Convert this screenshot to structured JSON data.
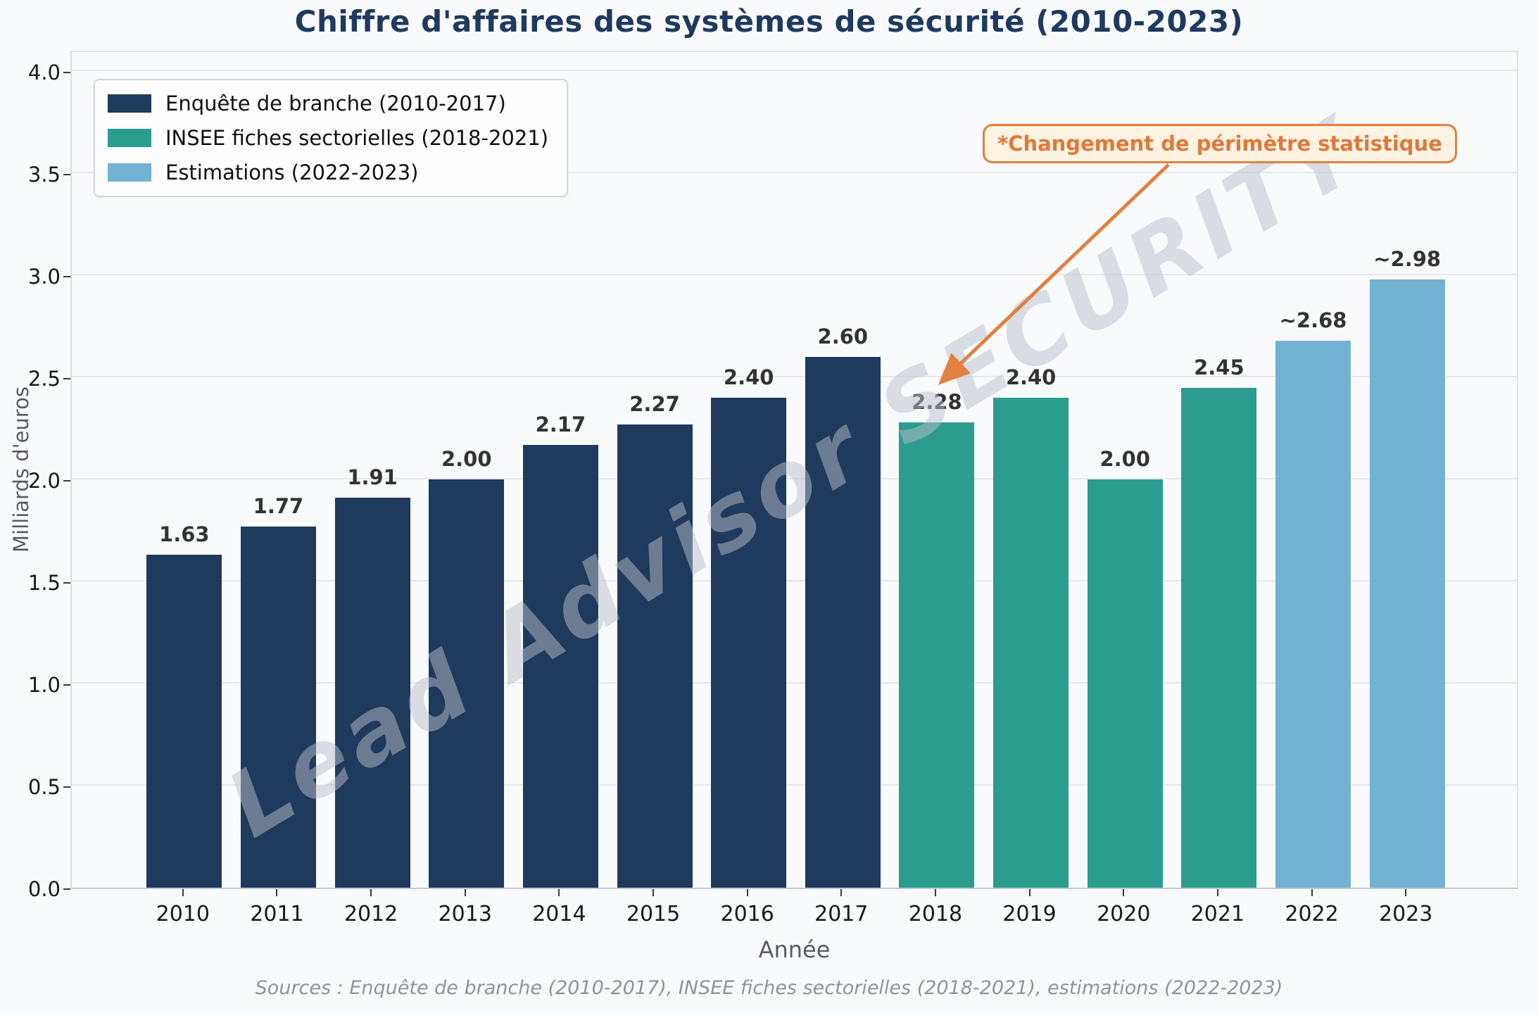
{
  "title": "Chiffre d'affaires des systèmes de sécurité (2010-2023)",
  "watermark": "Lead Advisor SECURITY",
  "annotation": {
    "label": "*Changement de périmètre statistique"
  },
  "axes": {
    "xlabel": "Année",
    "ylabel": "Milliards d'euros",
    "yticks": [
      "0.0",
      "0.5",
      "1.0",
      "1.5",
      "2.0",
      "2.5",
      "3.0",
      "3.5",
      "4.0"
    ]
  },
  "legend": {
    "items": [
      {
        "label": "Enquête de branche (2010-2017)",
        "color": "#1e3a5c"
      },
      {
        "label": "INSEE fiches sectorielles (2018-2021)",
        "color": "#2a9d8f"
      },
      {
        "label": "Estimations (2022-2023)",
        "color": "#72b2d2"
      }
    ]
  },
  "source": "Sources : Enquête de branche (2010-2017), INSEE fiches sectorielles (2018-2021), estimations (2022-2023)",
  "chart_data": {
    "type": "bar",
    "title": "Chiffre d'affaires des systèmes de sécurité (2010-2023)",
    "xlabel": "Année",
    "ylabel": "Milliards d'euros",
    "ylim": [
      0,
      4
    ],
    "ytick_step": 0.5,
    "grid": true,
    "legend_position": "upper-left",
    "categories": [
      "2010",
      "2011",
      "2012",
      "2013",
      "2014",
      "2015",
      "2016",
      "2017",
      "2018",
      "2019",
      "2020",
      "2021",
      "2022",
      "2023"
    ],
    "values": [
      1.63,
      1.77,
      1.91,
      2.0,
      2.17,
      2.27,
      2.4,
      2.6,
      2.28,
      2.4,
      2.0,
      2.45,
      2.68,
      2.98
    ],
    "bar_labels": [
      "1.63",
      "1.77",
      "1.91",
      "2.00",
      "2.17",
      "2.27",
      "2.40",
      "2.60",
      "2.28",
      "2.40",
      "2.00",
      "2.45",
      "~2.68",
      "~2.98"
    ],
    "bar_series_index": [
      0,
      0,
      0,
      0,
      0,
      0,
      0,
      0,
      1,
      1,
      1,
      1,
      2,
      2
    ],
    "series": [
      {
        "name": "Enquête de branche (2010-2017)",
        "color": "#1e3a5c",
        "categories": [
          "2010",
          "2011",
          "2012",
          "2013",
          "2014",
          "2015",
          "2016",
          "2017"
        ],
        "values": [
          1.63,
          1.77,
          1.91,
          2.0,
          2.17,
          2.27,
          2.4,
          2.6
        ]
      },
      {
        "name": "INSEE fiches sectorielles (2018-2021)",
        "color": "#2a9d8f",
        "categories": [
          "2018",
          "2019",
          "2020",
          "2021"
        ],
        "values": [
          2.28,
          2.4,
          2.0,
          2.45
        ]
      },
      {
        "name": "Estimations (2022-2023)",
        "color": "#72b2d2",
        "categories": [
          "2022",
          "2023"
        ],
        "values": [
          2.68,
          2.98
        ],
        "approximate": true
      }
    ],
    "annotation": {
      "text": "*Changement de périmètre statistique",
      "target_year": "2018"
    }
  }
}
